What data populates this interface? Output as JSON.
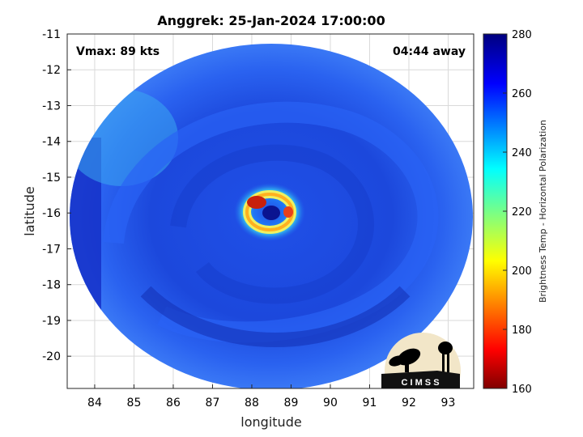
{
  "chart_data": {
    "type": "heatmap",
    "title": "Anggrek: 25-Jan-2024 17:00:00",
    "xlabel": "longitude",
    "ylabel": "latitude",
    "xlim": [
      83.3,
      93.65
    ],
    "ylim": [
      -20.9,
      -11
    ],
    "xticks": [
      "84",
      "85",
      "86",
      "87",
      "88",
      "89",
      "90",
      "91",
      "92",
      "93"
    ],
    "yticks": [
      "-11",
      "-12",
      "-13",
      "-14",
      "-15",
      "-16",
      "-17",
      "-18",
      "-19",
      "-20"
    ],
    "grid": true,
    "annotations": {
      "left": "Vmax: 89 kts",
      "right": "04:44 away"
    },
    "storm_center": {
      "lon": 88.4,
      "lat": -16.0
    },
    "colorbar": {
      "label": "Brightness Temp - Horizontal Polarization",
      "range": [
        160,
        280
      ],
      "ticks": [
        "160",
        "180",
        "200",
        "220",
        "240",
        "260",
        "280"
      ],
      "colormap": "jet"
    },
    "logo": {
      "text": "C I M S S"
    }
  },
  "colors": {
    "background_field": "#1c4fe0",
    "ring": "#38e0f0",
    "eyewall_hot": "#c41a0a",
    "eye": "#0a1490"
  }
}
